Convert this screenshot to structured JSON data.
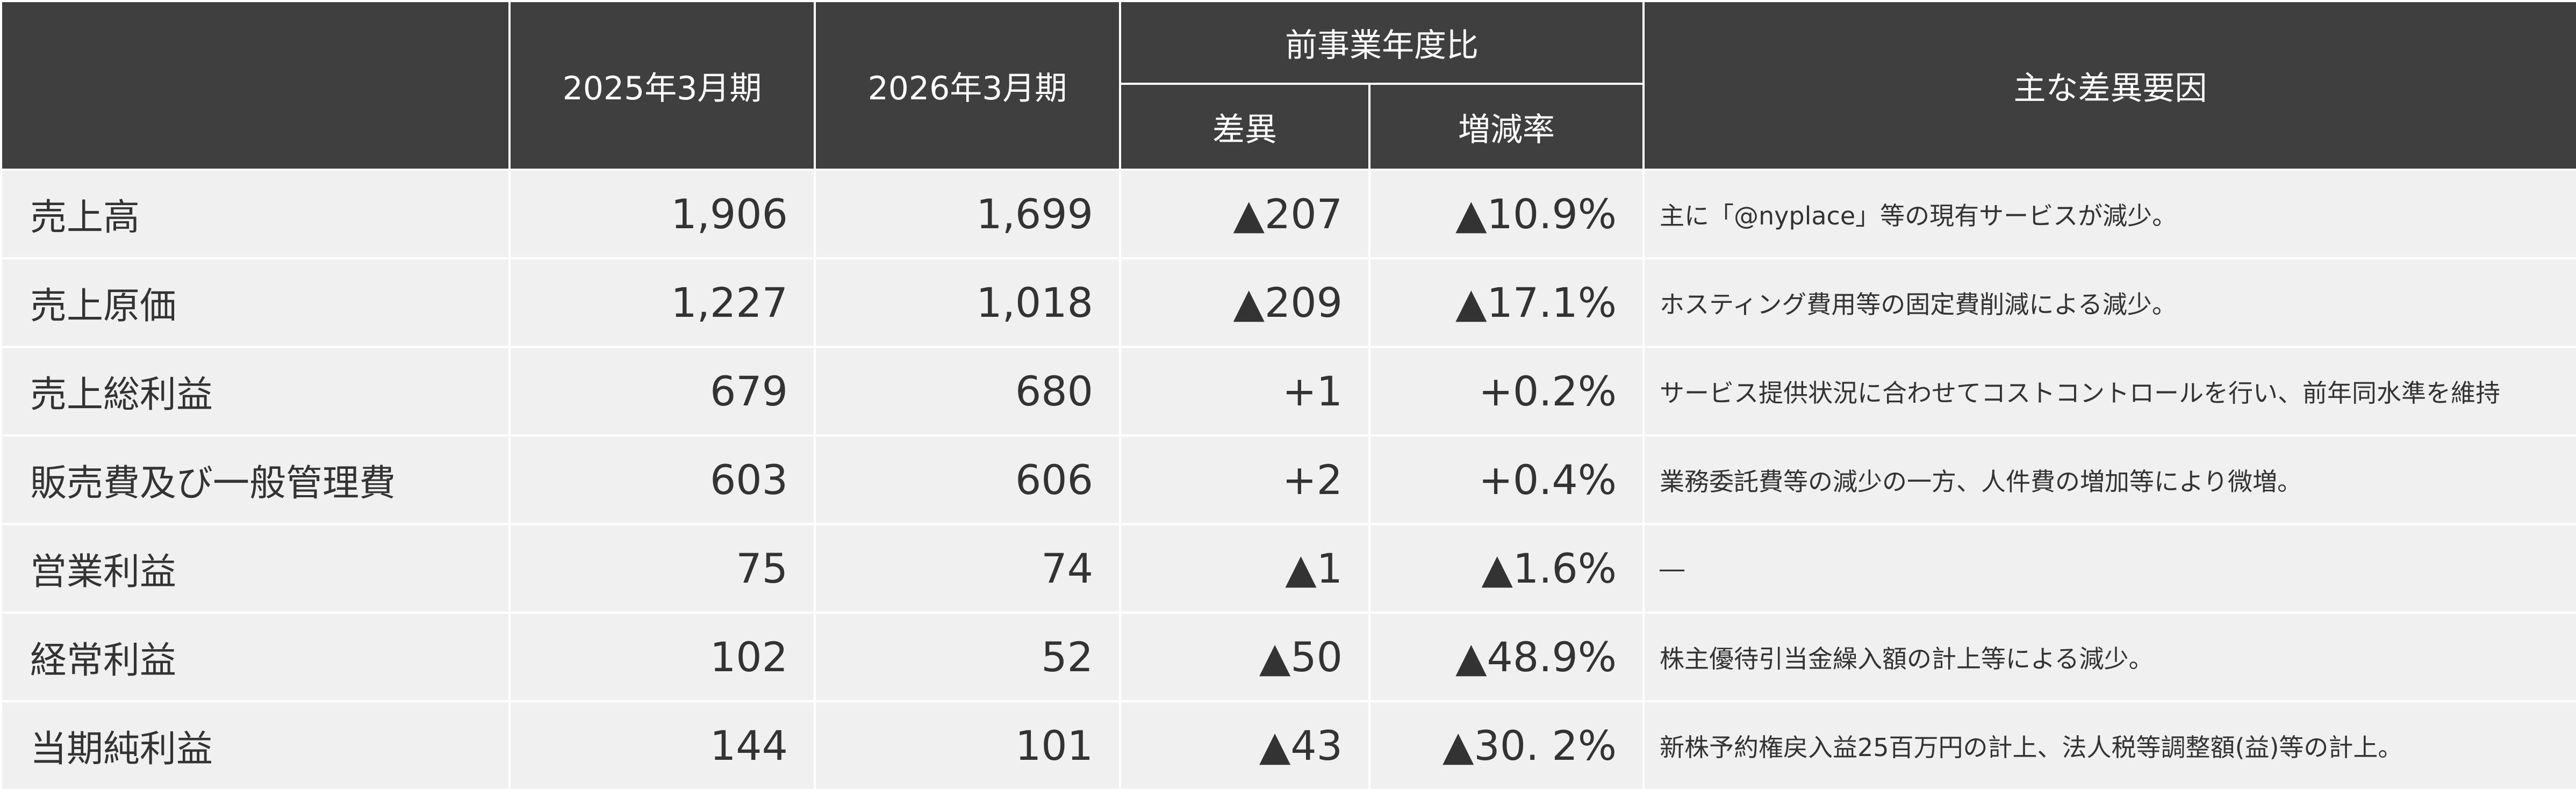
{
  "colors": {
    "header_bg": "#3f3f3f",
    "row_bg": "#f0f0f0",
    "red": "#e8466b",
    "blue": "#1a6fbf"
  },
  "header": {
    "item": "",
    "fy2025": "2025年3月期",
    "fy2026": "2026年3月期",
    "yoy_group": "前事業年度比",
    "diff": "差異",
    "rate": "増減率",
    "factors": "主な差異要因"
  },
  "rows": [
    {
      "item": "売上高",
      "fy2025": "1,906",
      "fy2026": "1,699",
      "diff": "▲207",
      "rate": "▲10.9%",
      "note": "主に「@nyplace」等の現有サービスが減少。"
    },
    {
      "item": "売上原価",
      "fy2025": "1,227",
      "fy2026": "1,018",
      "diff": "▲209",
      "rate": "▲17.1%",
      "note": "ホスティング費用等の固定費削減による減少。"
    },
    {
      "item": "売上総利益",
      "fy2025": "679",
      "fy2026": "680",
      "diff": "+1",
      "rate": "+0.2%",
      "note": "サービス提供状況に合わせてコストコントロールを行い、前年同水準を維持"
    },
    {
      "item": "販売費及び一般管理費",
      "fy2025": "603",
      "fy2026": "606",
      "diff": "+2",
      "rate": "+0.4%",
      "note": "業務委託費等の減少の一方、人件費の増加等により微増。"
    },
    {
      "item": "営業利益",
      "fy2025": "75",
      "fy2026": "74",
      "diff": "▲1",
      "rate": "▲1.6%",
      "note": "―"
    },
    {
      "item": "経常利益",
      "fy2025": "102",
      "fy2026": "52",
      "diff": "▲50",
      "rate": "▲48.9%",
      "note": "株主優待引当金繰入額の計上等による減少。"
    },
    {
      "item": "当期純利益",
      "fy2025": "144",
      "fy2026": "101",
      "diff": "▲43",
      "rate": "▲30. 2%",
      "note": "新株予約権戻入益25百万円の計上、法人税等調整額(益)等の計上。"
    }
  ]
}
